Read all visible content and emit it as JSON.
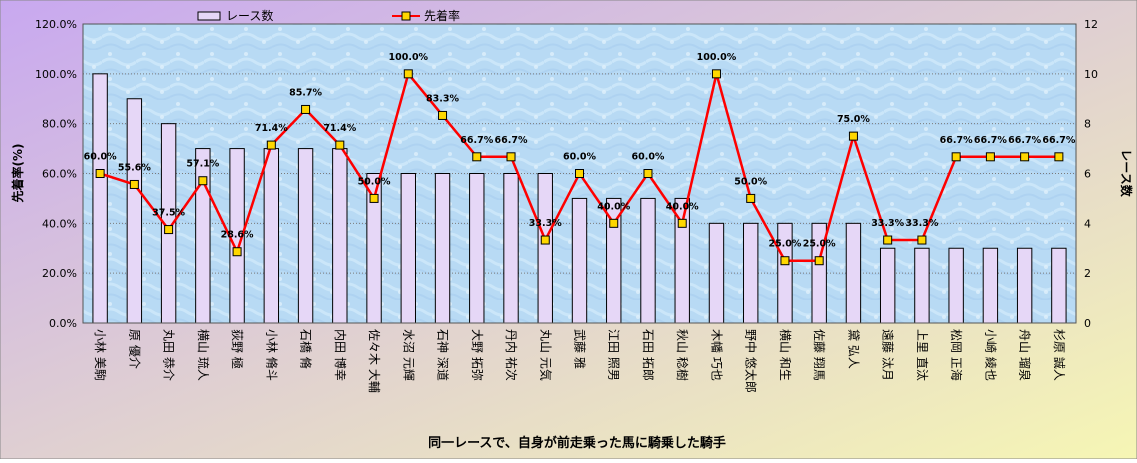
{
  "chart_data": {
    "type": "bar+line",
    "title": "",
    "xlabel": "同一レースで、自身が前走乗った馬に騎乗した騎手",
    "ylabel_left": "先着率(%)",
    "ylabel_right": "レース数",
    "ylim_left": [
      0,
      120
    ],
    "ylim_right": [
      0,
      12
    ],
    "yticks_left": [
      "0.0%",
      "20.0%",
      "40.0%",
      "60.0%",
      "80.0%",
      "100.0%",
      "120.0%"
    ],
    "yticks_right": [
      "0",
      "2",
      "4",
      "6",
      "8",
      "10",
      "12"
    ],
    "legend_position": "top",
    "grid": true,
    "categories": [
      "小林 美駒",
      "原 優介",
      "丸田 恭介",
      "横山 琉人",
      "荻野 極",
      "小林 脩斗",
      "石橋 脩",
      "内田 博幸",
      "佐々木 大輔",
      "水沼 元輝",
      "石神 深道",
      "大野 拓弥",
      "丹内 祐次",
      "丸山 元気",
      "武藤 雅",
      "江田 照男",
      "石田 拓郎",
      "秋山 稔樹",
      "木幡 巧也",
      "野中 悠太郎",
      "横山 和生",
      "佐藤 翔馬",
      "黛 弘人",
      "遠藤 汰月",
      "上里 直汰",
      "松岡 正海",
      "小崎 綾也",
      "舟山 瑠泉",
      "杉原 誠人"
    ],
    "series": [
      {
        "name": "レース数",
        "kind": "bar",
        "axis": "right",
        "color": "#e6d7f7",
        "border": "#000000",
        "values": [
          10,
          9,
          8,
          7,
          7,
          7,
          7,
          7,
          6,
          6,
          6,
          6,
          6,
          6,
          5,
          5,
          5,
          5,
          4,
          4,
          4,
          4,
          4,
          3,
          3,
          3,
          3,
          3,
          3
        ]
      },
      {
        "name": "先着率",
        "kind": "line",
        "axis": "left",
        "color": "#ff0000",
        "marker_color": "#ffd700",
        "values": [
          60.0,
          55.6,
          37.5,
          57.1,
          28.6,
          71.4,
          85.7,
          71.4,
          50.0,
          100.0,
          83.3,
          66.7,
          66.7,
          33.3,
          60.0,
          40.0,
          60.0,
          40.0,
          100.0,
          50.0,
          25.0,
          25.0,
          75.0,
          33.3,
          33.3,
          66.7,
          66.7,
          66.7,
          66.7
        ],
        "labels": [
          "60.0%",
          "55.6%",
          "37.5%",
          "57.1%",
          "28.6%",
          "71.4%",
          "85.7%",
          "71.4%",
          "50.0%",
          "100.0%",
          "83.3%",
          "66.7%",
          "66.7%",
          "33.3%",
          "60.0%",
          "40.0%",
          "60.0%",
          "40.0%",
          "100.0%",
          "50.0%",
          "25.0%",
          "25.0%",
          "75.0%",
          "33.3%",
          "33.3%",
          "66.7%",
          "66.7%",
          "66.7%",
          "66.7%"
        ]
      }
    ]
  },
  "colors": {
    "bg_gradient": [
      "#c8a8f0",
      "#f6f6b4"
    ],
    "plot_bg": "#b8daf4",
    "line": "#ff0000",
    "marker": "#ffd700"
  }
}
